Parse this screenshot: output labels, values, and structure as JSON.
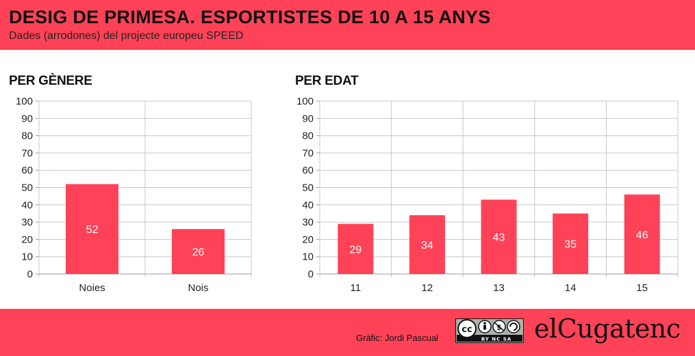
{
  "header": {
    "title": "DESIG DE PRIMESA. ESPORTISTES DE 10 A 15 ANYS",
    "subtitle": "Dades (arrodones) del projecte europeu SPEED"
  },
  "colors": {
    "accent": "#ff4257",
    "bar": "#ff4257",
    "grid": "#c8c8c8"
  },
  "chart_data": [
    {
      "type": "bar",
      "title": "PER GÈNERE",
      "categories": [
        "Noies",
        "Nois"
      ],
      "values": [
        52,
        26
      ],
      "ylim": [
        0,
        100
      ],
      "yticks": [
        0,
        10,
        20,
        30,
        40,
        50,
        60,
        70,
        80,
        90,
        100
      ],
      "data_labels": true,
      "grid": true
    },
    {
      "type": "bar",
      "title": "PER EDAT",
      "categories": [
        "11",
        "12",
        "13",
        "14",
        "15"
      ],
      "values": [
        29,
        34,
        43,
        35,
        46
      ],
      "ylim": [
        0,
        100
      ],
      "yticks": [
        0,
        10,
        20,
        30,
        40,
        50,
        60,
        70,
        80,
        90,
        100
      ],
      "data_labels": true,
      "grid": true
    }
  ],
  "footer": {
    "credit": "Gràfic: Jordi Pascual",
    "license_icon": "cc-by-nc-sa-icon",
    "license_text": "BY NC SA",
    "brand": "elCugatenc"
  }
}
